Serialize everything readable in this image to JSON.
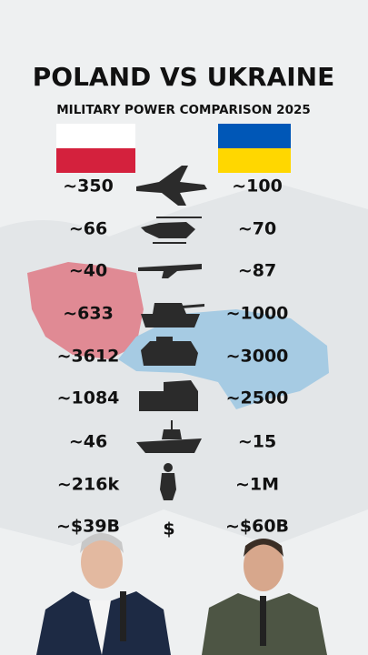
{
  "title": "POLAND VS UKRAINE",
  "subtitle": "MILITARY POWER COMPARISON 2025",
  "rows": [
    {
      "poland": "~350",
      "ukraine": "~100"
    },
    {
      "poland": "~66",
      "ukraine": "~70"
    },
    {
      "poland": "~40",
      "ukraine": "~87"
    },
    {
      "poland": "~633",
      "ukraine": "~1000"
    },
    {
      "poland": "~3612",
      "ukraine": "~3000"
    },
    {
      "poland": "~1084",
      "ukraine": "~2500"
    },
    {
      "poland": "~46",
      "ukraine": "~15"
    },
    {
      "poland": "~216k",
      "ukraine": "~1M"
    },
    {
      "poland": "~$39B",
      "ukraine": "~$60B",
      "icon": "$"
    }
  ]
}
